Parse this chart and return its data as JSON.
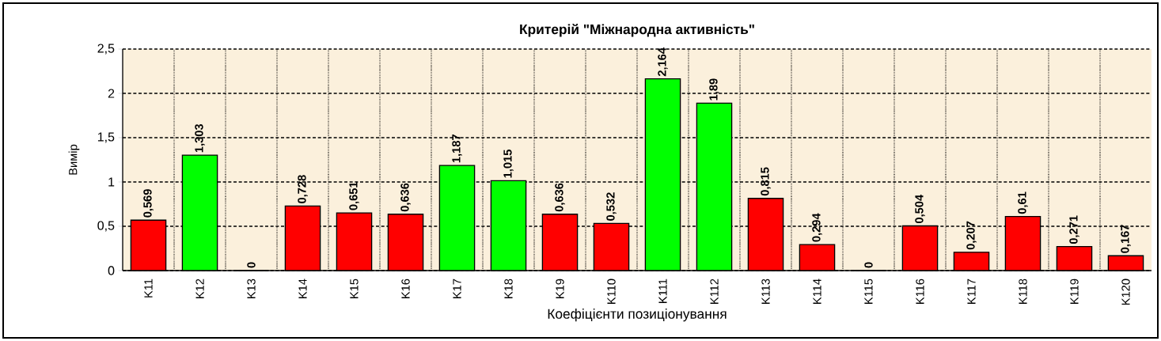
{
  "chart_data": {
    "type": "bar",
    "title": "Критерій \"Міжнародна активність\"",
    "xlabel": "Коефіцієнти позиціонування",
    "ylabel": "Вимір",
    "categories": [
      "K11",
      "K12",
      "K13",
      "K14",
      "K15",
      "K16",
      "K17",
      "K18",
      "K19",
      "K110",
      "K111",
      "K112",
      "K113",
      "K114",
      "K115",
      "K116",
      "K117",
      "K118",
      "K119",
      "K120"
    ],
    "values": [
      0.569,
      1.303,
      0,
      0.728,
      0.651,
      0.636,
      1.187,
      1.015,
      0.636,
      0.532,
      2.164,
      1.89,
      0.815,
      0.294,
      0,
      0.504,
      0.207,
      0.61,
      0.271,
      0.167
    ],
    "value_labels": [
      "0,569",
      "1,303",
      "0",
      "0,728",
      "0,651",
      "0,636",
      "1,187",
      "1,015",
      "0,636",
      "0,532",
      "2,164",
      "1,89",
      "0,815",
      "0,294",
      "0",
      "0,504",
      "0,207",
      "0,61",
      "0,271",
      "0,167"
    ],
    "colors": [
      "#ff0000",
      "#00ff00",
      "#ff0000",
      "#ff0000",
      "#ff0000",
      "#ff0000",
      "#00ff00",
      "#00ff00",
      "#ff0000",
      "#ff0000",
      "#00ff00",
      "#00ff00",
      "#ff0000",
      "#ff0000",
      "#ff0000",
      "#ff0000",
      "#ff0000",
      "#ff0000",
      "#ff0000",
      "#ff0000"
    ],
    "ylim": [
      0,
      2.5
    ],
    "yticks": [
      0,
      {
        "value": 0.5,
        "label": "0,5"
      },
      1,
      {
        "value": 1.5,
        "label": "1,5"
      },
      2,
      {
        "value": 2.5,
        "label": "2,5"
      }
    ],
    "grid": true
  }
}
